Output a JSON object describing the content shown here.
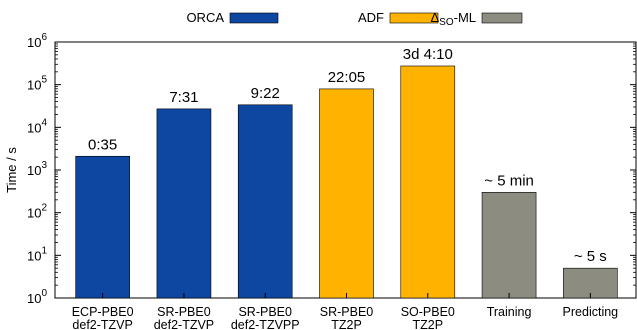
{
  "chart_data": {
    "type": "bar",
    "yscale": "log",
    "ylim": [
      1,
      1000000
    ],
    "ylabel": "Time / s",
    "ytick_values": [
      1,
      10,
      100,
      1000,
      10000,
      100000,
      1000000
    ],
    "yticks": [
      {
        "base": "10",
        "exp": "0"
      },
      {
        "base": "10",
        "exp": "1"
      },
      {
        "base": "10",
        "exp": "2"
      },
      {
        "base": "10",
        "exp": "3"
      },
      {
        "base": "10",
        "exp": "4"
      },
      {
        "base": "10",
        "exp": "5"
      },
      {
        "base": "10",
        "exp": "6"
      }
    ],
    "legend": [
      {
        "label": "ORCA",
        "color": "#0d47a1"
      },
      {
        "label": "ADF",
        "color": "#ffb300"
      },
      {
        "label_prefix": "Δ",
        "label_sub": "SO",
        "label_suffix": "-ML",
        "color": "#8c8c80"
      }
    ],
    "legend_placement": "top",
    "grid": false,
    "categories": [
      {
        "line1": "ECP-PBE0",
        "line2": "def2-TZVP",
        "value": 2100,
        "data_label": "0:35",
        "color": "#0d47a1"
      },
      {
        "line1": "SR-PBE0",
        "line2": "def2-TZVP",
        "value": 27060,
        "data_label": "7:31",
        "color": "#0d47a1"
      },
      {
        "line1": "SR-PBE0",
        "line2": "def2-TZVPP",
        "value": 33720,
        "data_label": "9:22",
        "color": "#0d47a1"
      },
      {
        "line1": "SR-PBE0",
        "line2": "TZ2P",
        "value": 79500,
        "data_label": "22:05",
        "color": "#ffb300"
      },
      {
        "line1": "SO-PBE0",
        "line2": "TZ2P",
        "value": 274200,
        "data_label": "3d 4:10",
        "color": "#ffb300"
      },
      {
        "line1": "Training",
        "line2": "",
        "value": 300,
        "data_label": "~ 5 min",
        "color": "#8c8c80"
      },
      {
        "line1": "Predicting",
        "line2": "",
        "value": 5,
        "data_label": "~ 5 s",
        "color": "#8c8c80"
      }
    ]
  }
}
